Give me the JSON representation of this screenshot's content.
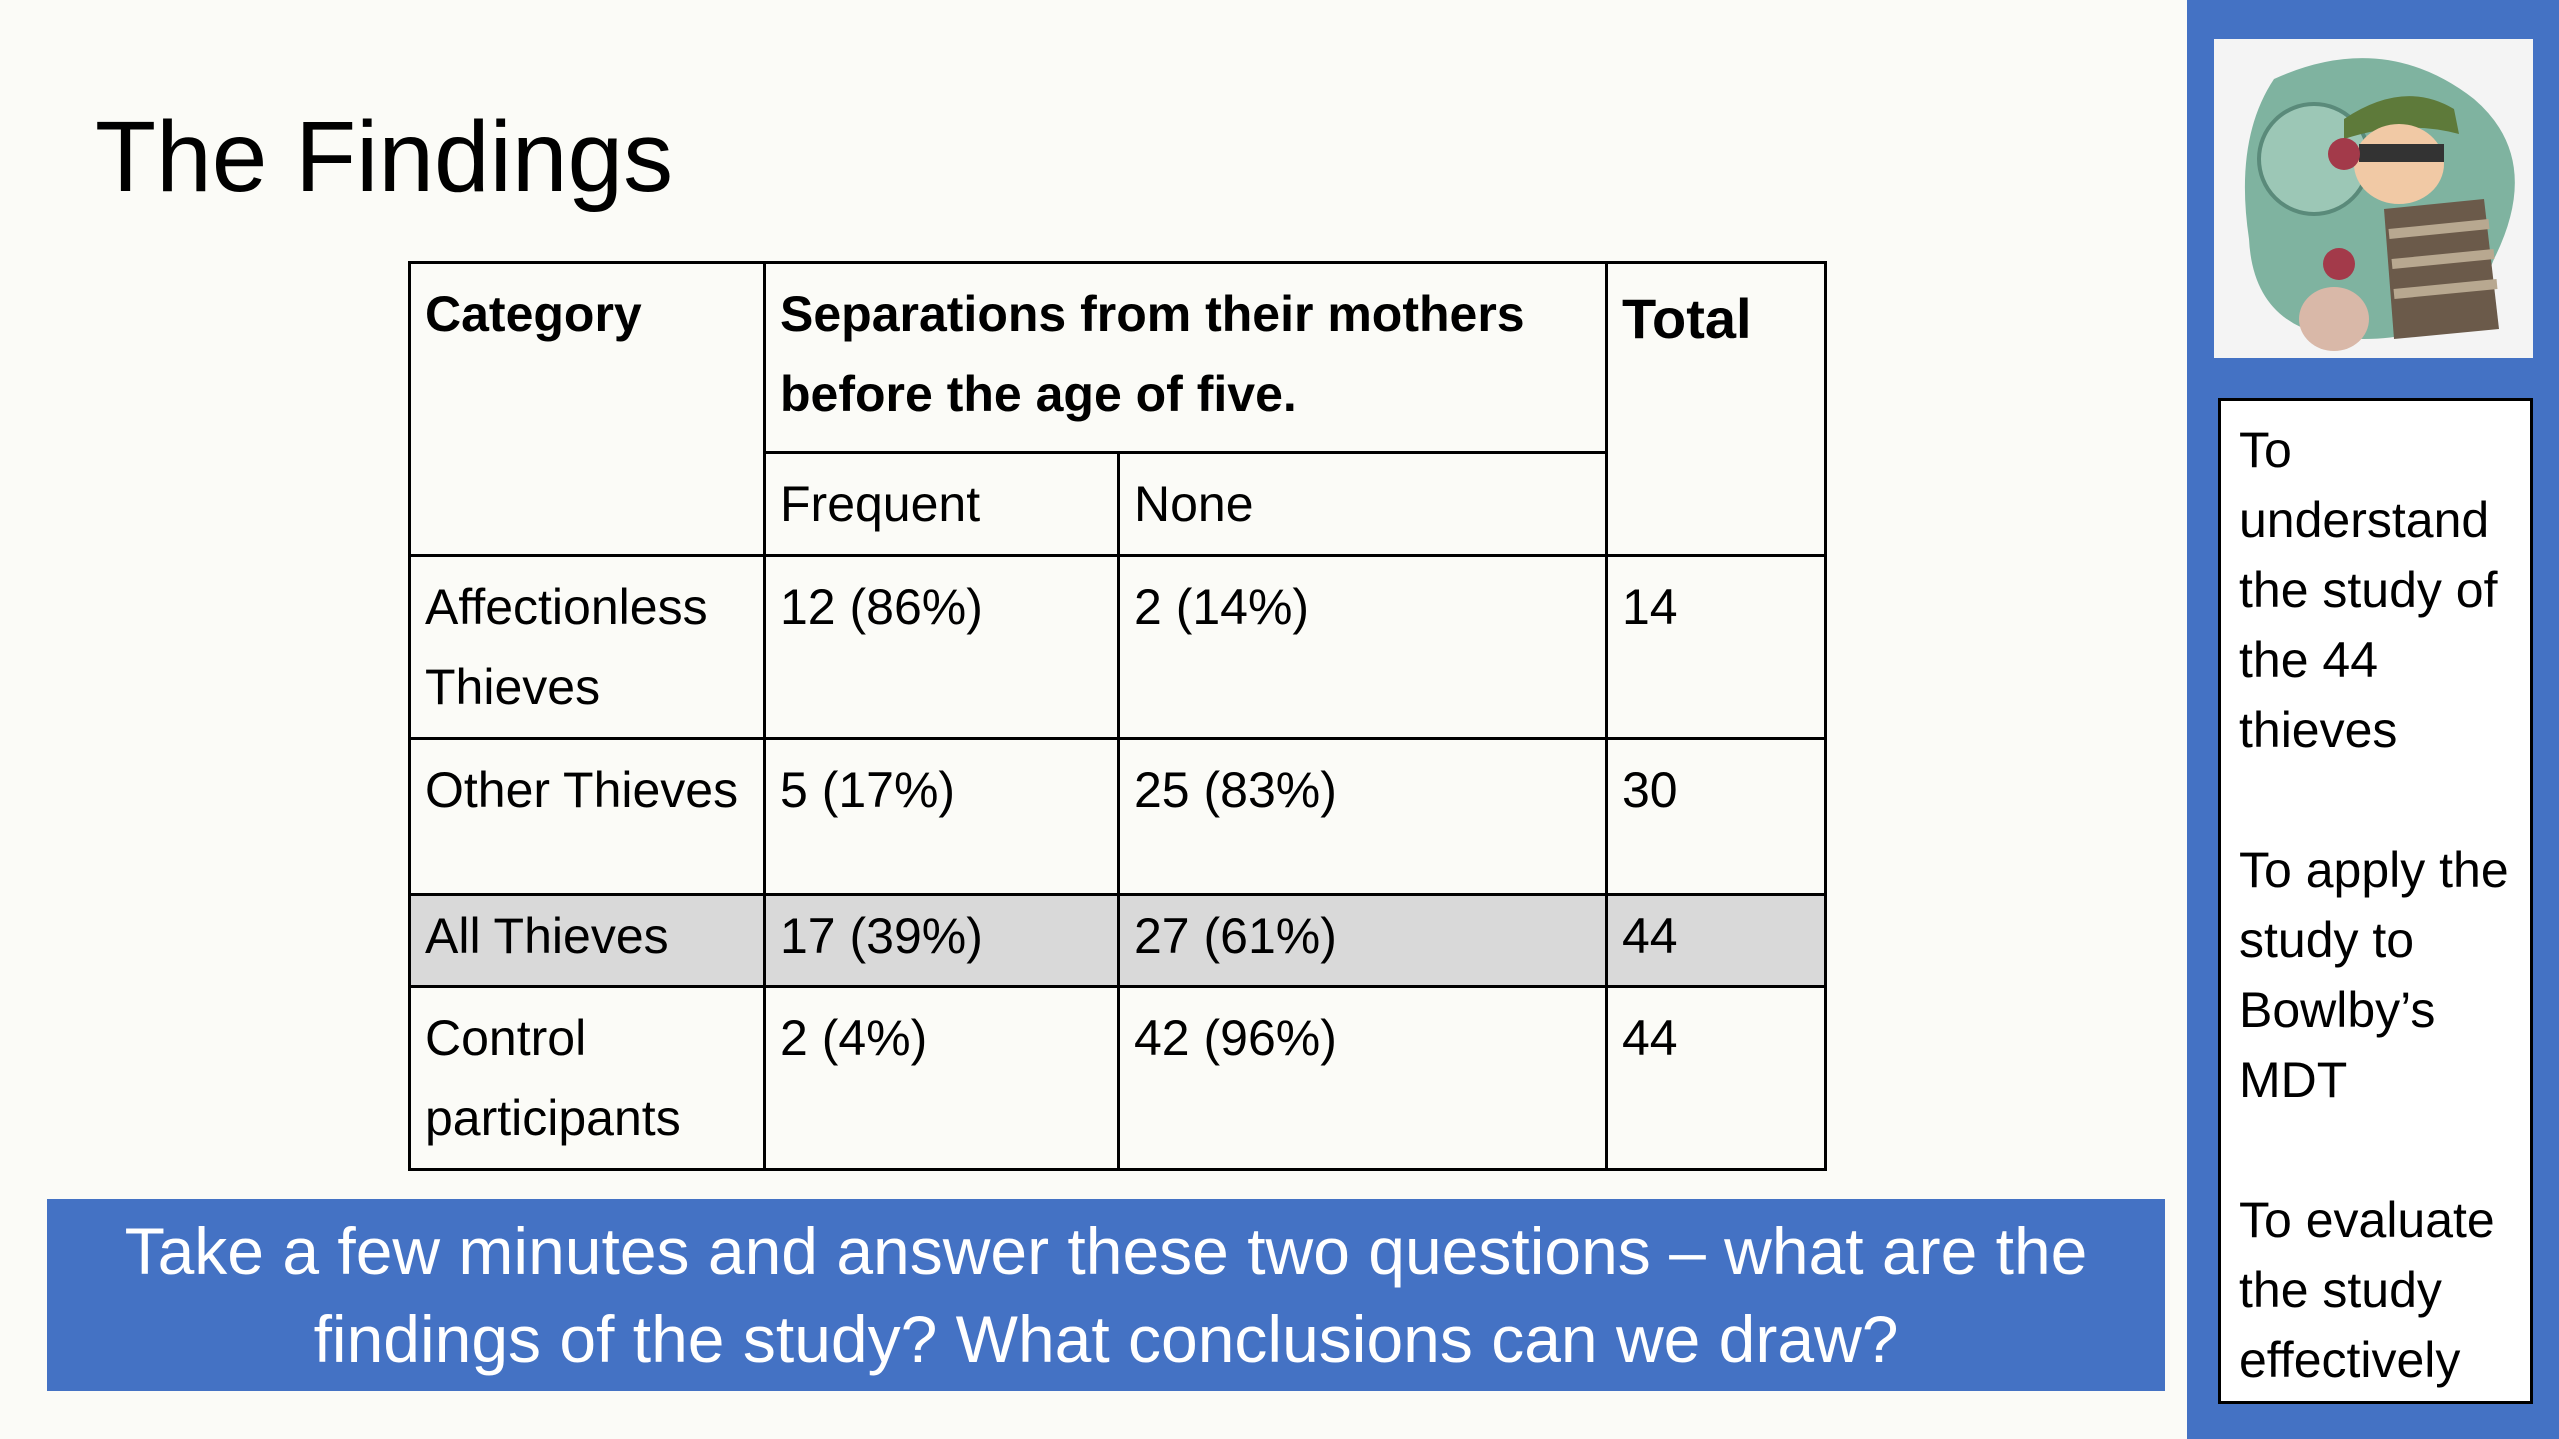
{
  "title": "The Findings",
  "table": {
    "header": {
      "category": "Category",
      "separations": "Separations from their mothers before the age of five.",
      "total": "Total",
      "frequent": "Frequent",
      "none": "None"
    },
    "rows": [
      [
        "Affectionless Thieves",
        "12 (86%)",
        "2 (14%)",
        "14"
      ],
      [
        "Other Thieves",
        "5 (17%)",
        "25 (83%)",
        "30"
      ],
      [
        "All Thieves",
        "17 (39%)",
        "27 (61%)",
        "44"
      ],
      [
        "Control participants",
        "2 (4%)",
        "42 (96%)",
        "44"
      ]
    ]
  },
  "prompt": "Take a few minutes and answer these two questions – what are the findings of the study? What conclusions can we draw?",
  "objectives": [
    "To understand the study of the 44 thieves",
    "To apply the study to Bowlby’s MDT",
    "To evaluate the study effectively"
  ]
}
